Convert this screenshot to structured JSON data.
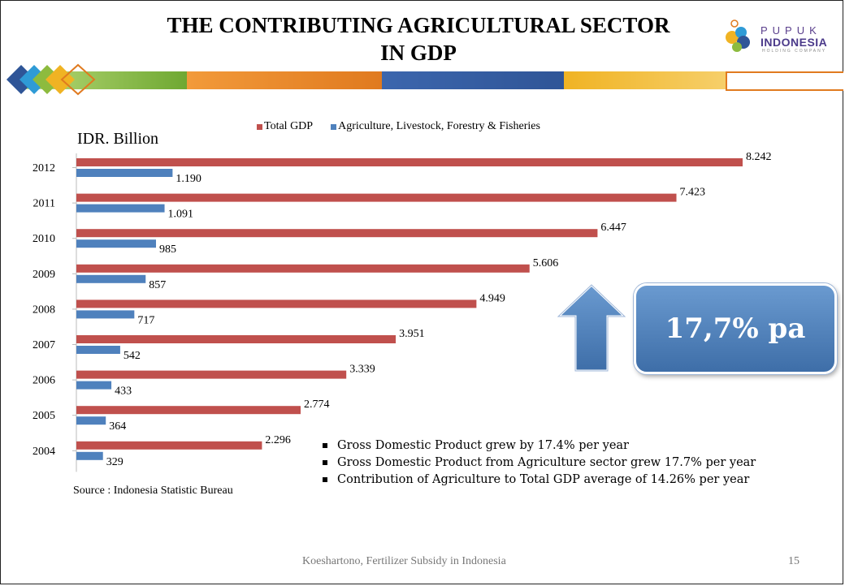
{
  "slide": {
    "title_line1": "THE CONTRIBUTING AGRICULTURAL SECTOR",
    "title_line2": "IN GDP",
    "logo_line1": "PUPUK",
    "logo_line2": "INDONESIA",
    "logo_line3": "HOLDING COMPANY",
    "unit_label": "IDR. Billion",
    "source": "Source : Indonesia Statistic Bureau",
    "growth_badge": "17,7% pa",
    "bullets": [
      "Gross Domestic Product grew by 17.4% per year",
      "Gross Domestic Product from Agriculture sector grew 17.7% per year",
      "Contribution of Agriculture to Total GDP average of 14.26% per year"
    ],
    "footer": "Koeshartono, Fertilizer Subsidy in Indonesia",
    "page_number": "15"
  },
  "colors": {
    "total_gdp": "#c0504d",
    "agriculture": "#4f81bd",
    "band_green": "#8dbb3e",
    "band_orange": "#e07a1f",
    "band_blue": "#2f5597",
    "band_yellow": "#f0b323"
  },
  "chart_data": {
    "type": "bar",
    "orientation": "horizontal",
    "categories": [
      "2012",
      "2011",
      "2010",
      "2009",
      "2008",
      "2007",
      "2006",
      "2005",
      "2004"
    ],
    "series": [
      {
        "name": "Total GDP",
        "values": [
          8242,
          7423,
          6447,
          5606,
          4949,
          3951,
          3339,
          2774,
          2296
        ],
        "labels": [
          "8.242",
          "7.423",
          "6.447",
          "5.606",
          "4.949",
          "3.951",
          "3.339",
          "2.774",
          "2.296"
        ]
      },
      {
        "name": "Agriculture, Livestock, Forestry & Fisheries",
        "values": [
          1190,
          1091,
          985,
          857,
          717,
          542,
          433,
          364,
          329
        ],
        "labels": [
          "1.190",
          "1.091",
          "985",
          "857",
          "717",
          "542",
          "433",
          "364",
          "329"
        ]
      }
    ],
    "xlim": [
      0,
      8242
    ],
    "legend_position": "top",
    "grid": false
  }
}
